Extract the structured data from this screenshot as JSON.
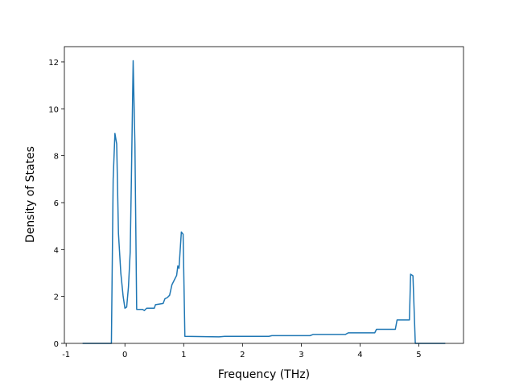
{
  "chart_data": {
    "type": "line",
    "x_label": "Frequency (THz)",
    "y_label": "Density of States",
    "color": "#1f77b4",
    "x": [
      -0.72,
      -0.23,
      -0.2,
      -0.17,
      -0.14,
      -0.11,
      -0.07,
      -0.03,
      0.0,
      0.03,
      0.06,
      0.09,
      0.11,
      0.14,
      0.17,
      0.2,
      0.3,
      0.33,
      0.37,
      0.5,
      0.52,
      0.65,
      0.68,
      0.72,
      0.76,
      0.8,
      0.84,
      0.88,
      0.9,
      0.92,
      0.96,
      0.99,
      1.02,
      1.6,
      1.7,
      2.45,
      2.5,
      3.15,
      3.2,
      3.75,
      3.8,
      4.25,
      4.28,
      4.6,
      4.63,
      4.84,
      4.86,
      4.9,
      4.94,
      5.45
    ],
    "values": [
      0,
      0,
      7.0,
      8.95,
      8.5,
      4.7,
      3.0,
      2.0,
      1.5,
      1.55,
      2.4,
      3.9,
      7.0,
      12.05,
      8.5,
      1.45,
      1.45,
      1.4,
      1.5,
      1.5,
      1.65,
      1.7,
      1.9,
      1.95,
      2.05,
      2.5,
      2.7,
      2.9,
      3.3,
      3.2,
      4.75,
      4.65,
      0.3,
      0.28,
      0.3,
      0.3,
      0.33,
      0.33,
      0.38,
      0.38,
      0.45,
      0.45,
      0.6,
      0.6,
      1.0,
      1.0,
      2.95,
      2.88,
      0,
      0
    ],
    "xlim": [
      -1.03,
      5.76
    ],
    "ylim": [
      0,
      12.65
    ],
    "xticks": [
      -1,
      0,
      1,
      2,
      3,
      4,
      5
    ],
    "yticks": [
      0,
      2,
      4,
      6,
      8,
      10,
      12
    ]
  }
}
